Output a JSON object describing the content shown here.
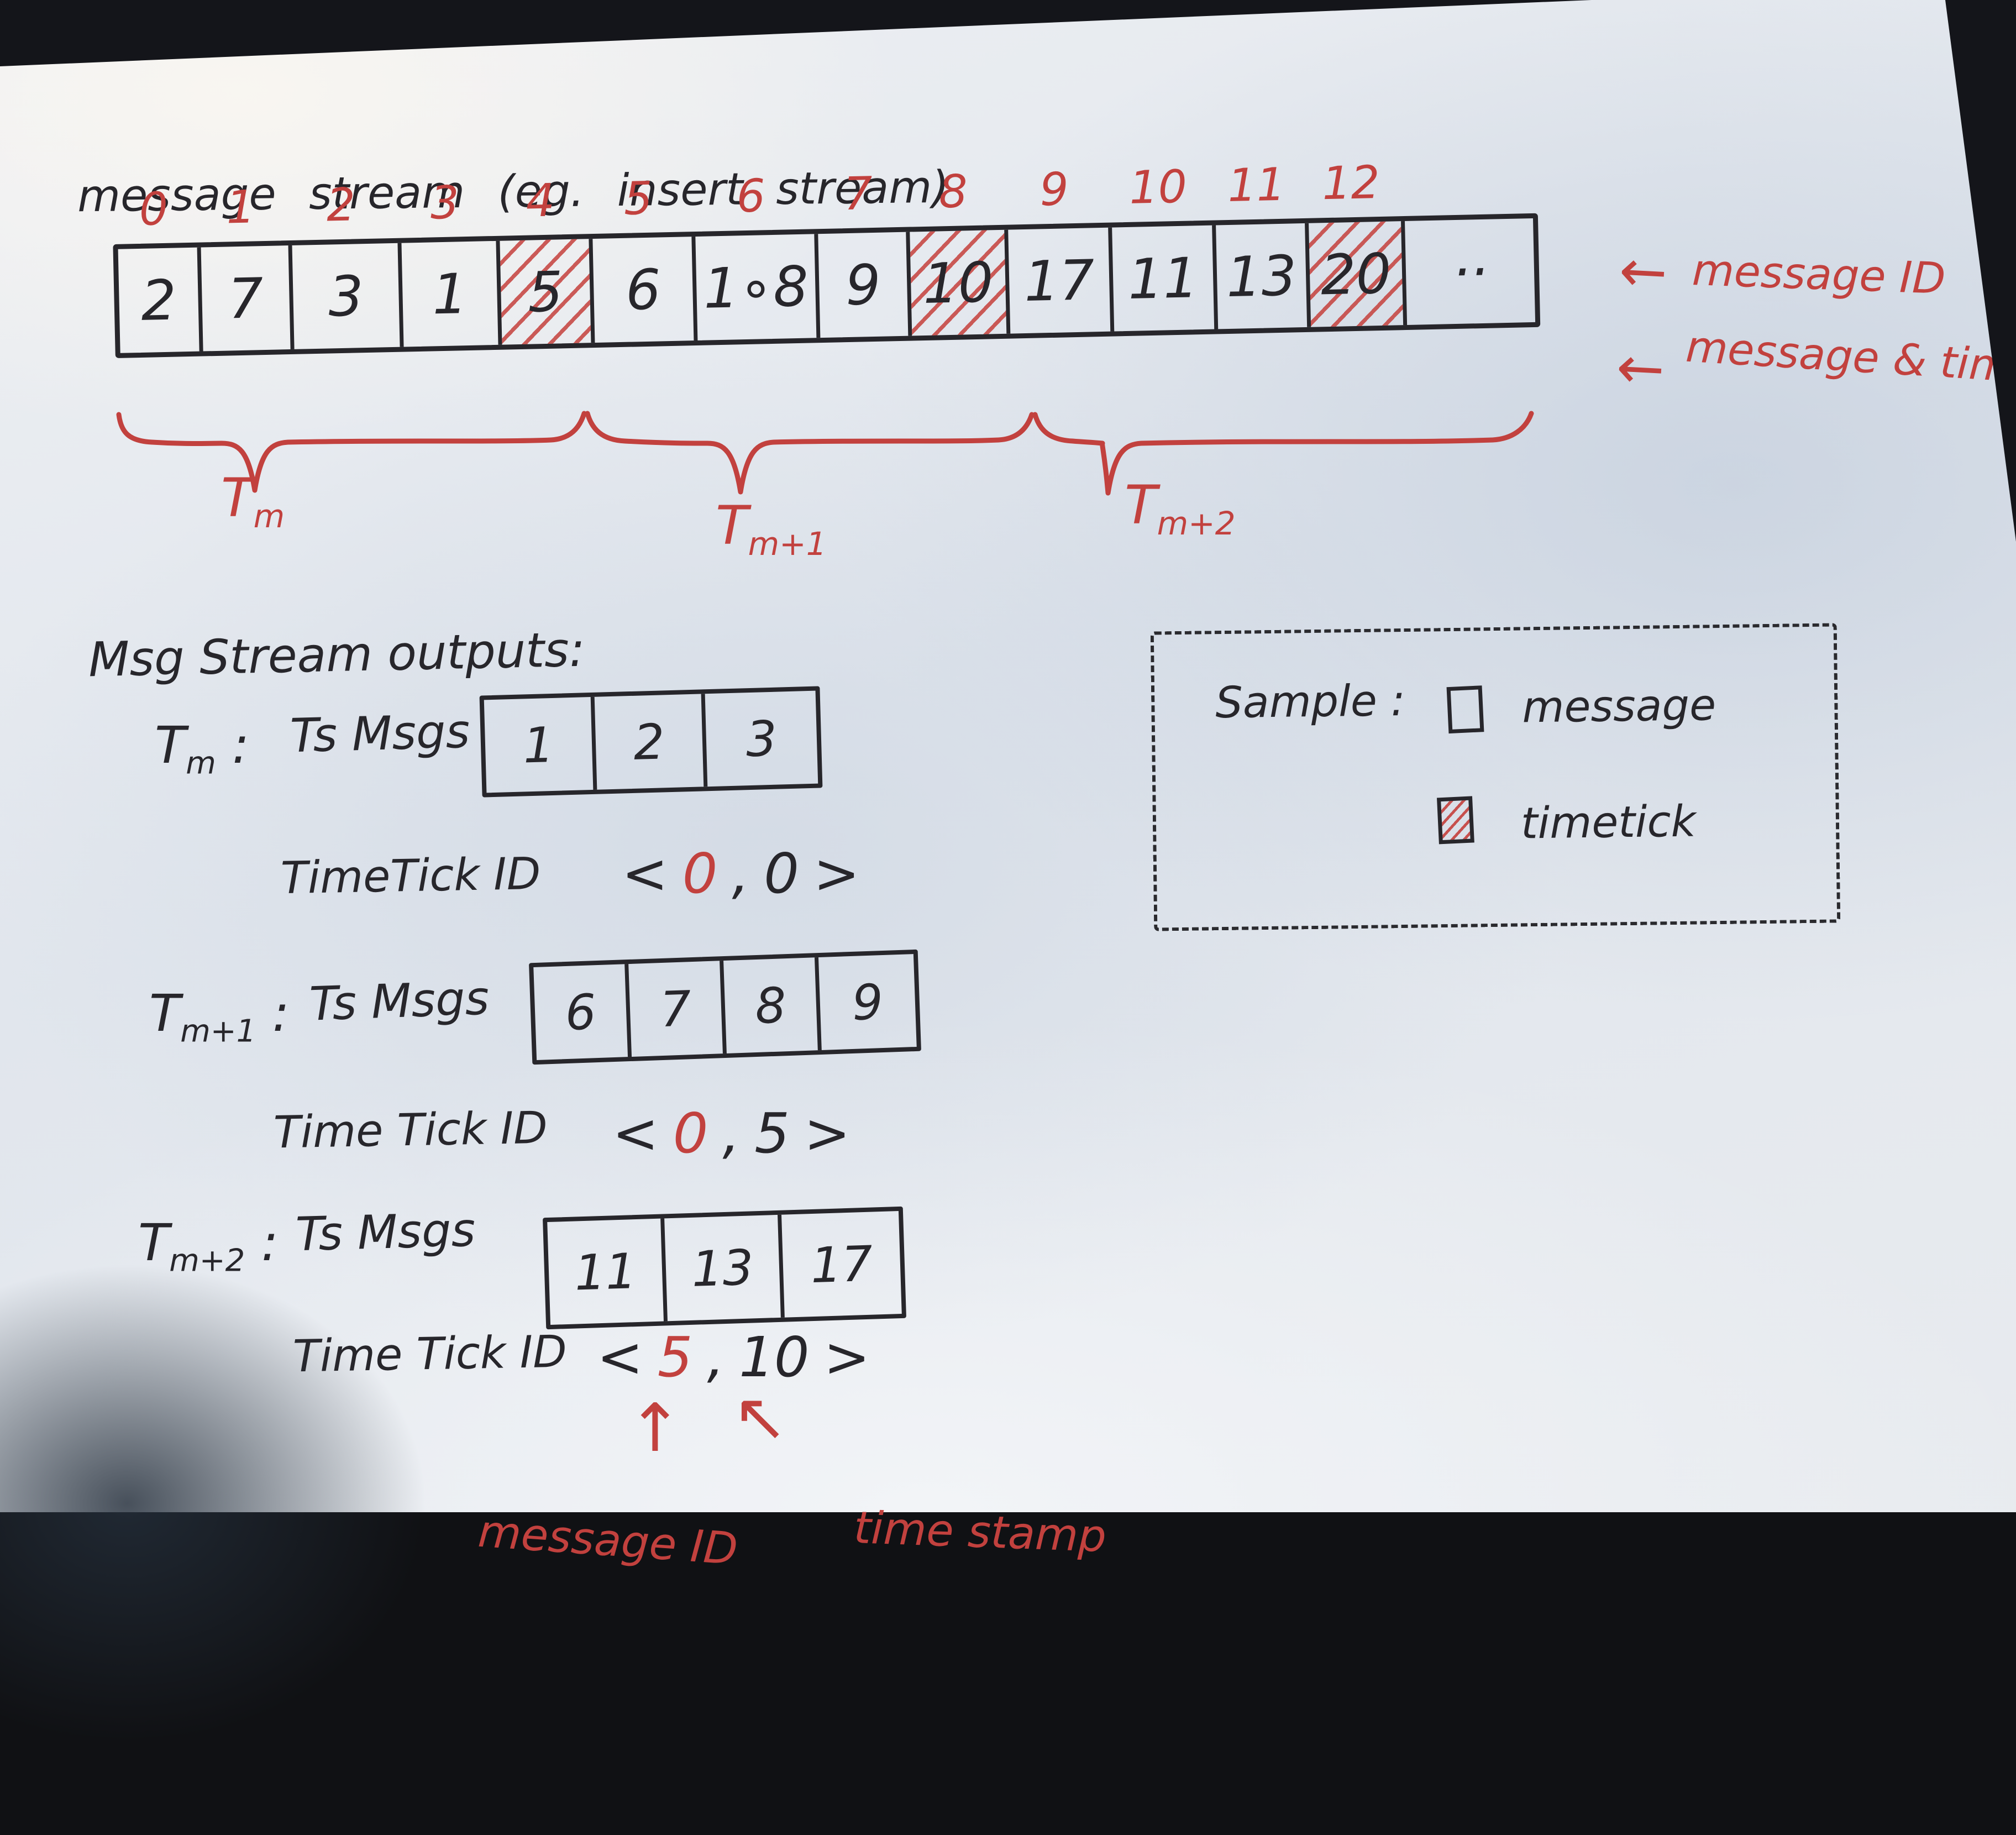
{
  "title": "message stream (eg. insert stream)",
  "stream": {
    "indices": [
      "0",
      "1",
      "2",
      "3",
      "4",
      "5",
      "6",
      "7",
      "8",
      "9",
      "10",
      "11",
      "12"
    ],
    "cells": [
      {
        "value": "2",
        "timetick": false
      },
      {
        "value": "7",
        "timetick": false
      },
      {
        "value": "3",
        "timetick": false
      },
      {
        "value": "1",
        "timetick": false
      },
      {
        "value": "5",
        "timetick": true
      },
      {
        "value": "6",
        "timetick": false
      },
      {
        "value": "1∘8",
        "timetick": false
      },
      {
        "value": "9",
        "timetick": false
      },
      {
        "value": "10",
        "timetick": true
      },
      {
        "value": "17",
        "timetick": false
      },
      {
        "value": "11",
        "timetick": false
      },
      {
        "value": "13",
        "timetick": false
      },
      {
        "value": "20",
        "timetick": true
      },
      {
        "value": "··",
        "timetick": false
      }
    ],
    "arrows": [
      {
        "glyph": "←",
        "label": "message ID"
      },
      {
        "glyph": "←",
        "label": "message & timstamp"
      }
    ],
    "braces": [
      {
        "base": "T",
        "sub": "m"
      },
      {
        "base": "T",
        "sub": "m+1"
      },
      {
        "base": "T",
        "sub": "m+2"
      }
    ]
  },
  "outputs": {
    "heading": "Msg Stream outputs:",
    "groups": [
      {
        "name": {
          "base": "T",
          "sub": "m"
        },
        "sep": ":",
        "msgs_label": "Ts Msgs",
        "msgs": [
          "1",
          "2",
          "3"
        ],
        "tick_label": "TimeTick ID",
        "pair": {
          "open": "<",
          "first": "0",
          "comma": ",",
          "second": "0",
          "close": ">"
        }
      },
      {
        "name": {
          "base": "T",
          "sub": "m+1"
        },
        "sep": ":",
        "msgs_label": "Ts Msgs",
        "msgs": [
          "6",
          "7",
          "8",
          "9"
        ],
        "tick_label": "Time Tick ID",
        "pair": {
          "open": "<",
          "first": "0",
          "comma": ",",
          "second": "5",
          "close": ">"
        }
      },
      {
        "name": {
          "base": "T",
          "sub": "m+2"
        },
        "sep": ":",
        "msgs_label": "Ts Msgs",
        "msgs": [
          "11",
          "13",
          "17"
        ],
        "tick_label": "Time Tick ID",
        "pair": {
          "open": "<",
          "first": "5",
          "comma": ",",
          "second": "10",
          "close": ">"
        }
      }
    ],
    "annotations": {
      "first_arrow": "↑",
      "second_arrow": "↖",
      "first_label": "message ID",
      "second_label": "time stamp"
    }
  },
  "legend": {
    "title": "Sample :",
    "items": [
      {
        "key": "message",
        "label": "message"
      },
      {
        "key": "timetick",
        "label": "timetick"
      }
    ]
  },
  "colors": {
    "ink": "#27262b",
    "red": "#c2413e",
    "paper": "#e8ebef",
    "background": "#101114"
  }
}
